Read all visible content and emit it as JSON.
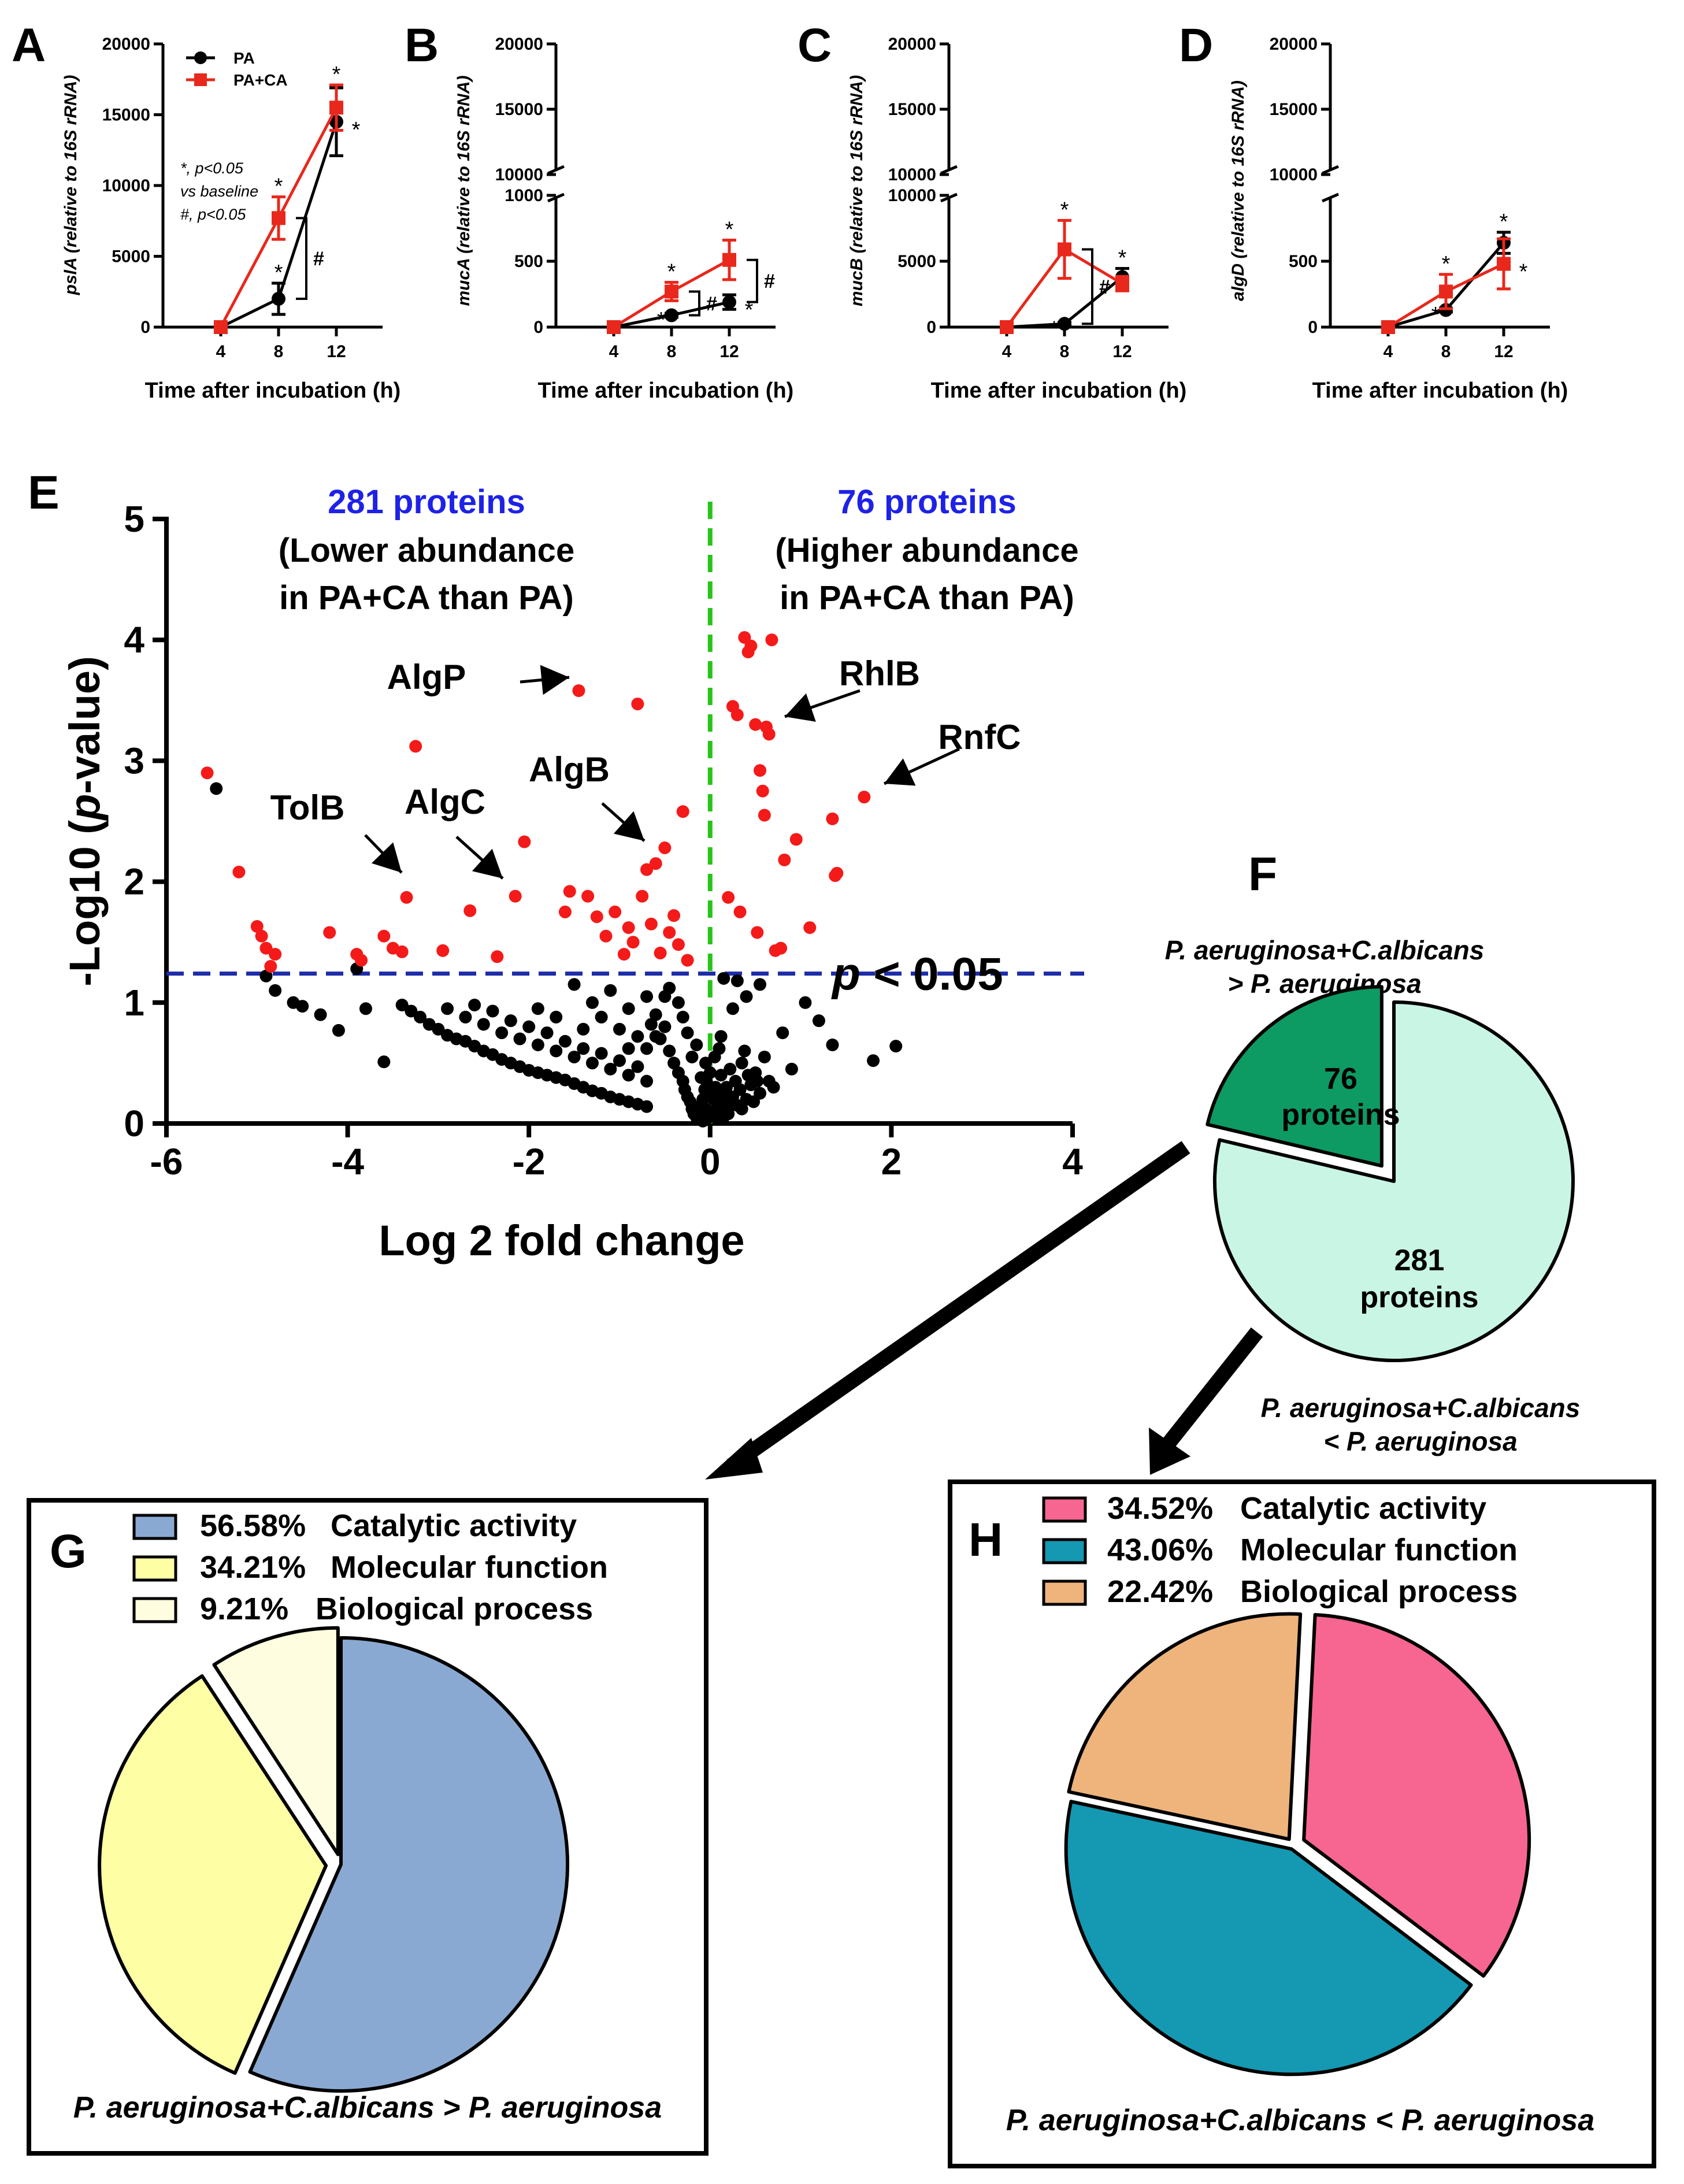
{
  "panel_letters": [
    "A",
    "B",
    "C",
    "D",
    "E",
    "F",
    "G",
    "H"
  ],
  "line_panels": [
    {
      "letter": "A",
      "gene": "pslA",
      "ylabel_suffix": " (relative to 16S rRNA)",
      "xlabel": "Time after incubation (h)",
      "x": [
        4,
        8,
        12
      ],
      "upper_ticks": [
        "10000",
        "15000",
        "20000"
      ],
      "lower_ticks": [
        "0",
        "5000",
        "10000",
        "15000"
      ],
      "series": [
        {
          "name": "PA",
          "color": "#000000",
          "values": [
            0,
            2000,
            14500
          ],
          "errors": [
            0,
            1100,
            2400
          ]
        },
        {
          "name": "PA+CA",
          "color": "#e8281c",
          "values": [
            0,
            7700,
            15500
          ],
          "errors": [
            0,
            1500,
            1600
          ]
        }
      ],
      "annotations": [
        "*",
        "*",
        "*",
        "*",
        "#"
      ],
      "stats_note": [
        "*, p<0.05",
        "vs baseline",
        "#, p<0.05"
      ]
    },
    {
      "letter": "B",
      "gene": "mucA",
      "ylabel_suffix": " (relative to 16S rRNA)",
      "xlabel": "Time after incubation (h)",
      "x": [
        4,
        8,
        12
      ],
      "upper_ticks": [
        "10000",
        "15000",
        "20000"
      ],
      "lower_ticks": [
        "0",
        "500",
        "1000"
      ],
      "series": [
        {
          "name": "PA",
          "color": "#000000",
          "values": [
            0,
            90,
            190
          ],
          "errors": [
            0,
            15,
            55
          ]
        },
        {
          "name": "PA+CA",
          "color": "#e8281c",
          "values": [
            0,
            270,
            510
          ],
          "errors": [
            0,
            70,
            150
          ]
        }
      ],
      "annotations": [
        "*",
        "*",
        "*",
        "*",
        "#",
        "#"
      ]
    },
    {
      "letter": "C",
      "gene": "mucB",
      "ylabel_suffix": " (relative to 16S rRNA)",
      "xlabel": "Time after incubation (h)",
      "x": [
        4,
        8,
        12
      ],
      "upper_ticks": [
        "10000",
        "15000",
        "20000"
      ],
      "lower_ticks": [
        "0",
        "5000",
        "10000"
      ],
      "series": [
        {
          "name": "PA",
          "color": "#000000",
          "values": [
            0,
            250,
            3800
          ],
          "errors": [
            0,
            120,
            650
          ]
        },
        {
          "name": "PA+CA",
          "color": "#e8281c",
          "values": [
            0,
            5900,
            3300
          ],
          "errors": [
            0,
            2200,
            550
          ]
        }
      ],
      "annotations": [
        "*",
        "*",
        "*",
        "#"
      ]
    },
    {
      "letter": "D",
      "gene": "algD",
      "ylabel_suffix": " (relative to 16S rRNA)",
      "xlabel": "Time after incubation (h)",
      "x": [
        4,
        8,
        12
      ],
      "upper_ticks": [
        "10000",
        "15000",
        "20000"
      ],
      "lower_ticks": [
        "0",
        "500"
      ],
      "series": [
        {
          "name": "PA",
          "color": "#000000",
          "values": [
            0,
            130,
            640
          ],
          "errors": [
            0,
            15,
            80
          ]
        },
        {
          "name": "PA+CA",
          "color": "#e8281c",
          "values": [
            0,
            270,
            480
          ],
          "errors": [
            0,
            130,
            190
          ]
        }
      ],
      "annotations": [
        "*",
        "*",
        "*",
        "*"
      ]
    }
  ],
  "volcano": {
    "letter": "E",
    "xlabel": "Log 2 fold change",
    "ylabel_pre": "-Log10 (",
    "ylabel_italic": "p",
    "ylabel_post": "-value)",
    "xticks": [
      "-6",
      "-4",
      "-2",
      "0",
      "2",
      "4"
    ],
    "yticks": [
      "0",
      "1",
      "2",
      "3",
      "4",
      "5"
    ],
    "xlim": [
      -6,
      4
    ],
    "ylim": [
      0,
      5
    ],
    "threshold": 1.24,
    "threshold_label_italic": "p",
    "threshold_label_rest": " < 0.05",
    "left_count": "281 proteins",
    "left_desc": [
      "(Lower abundance",
      "in PA+CA than PA)"
    ],
    "right_count": "76 proteins",
    "right_desc": [
      "(Higher abundance",
      "in PA+CA than PA)"
    ],
    "labeled_proteins": [
      "AlgP",
      "RhlB",
      "RnfC",
      "TolB",
      "AlgC",
      "AlgB"
    ],
    "sig_points": [
      [
        -5.55,
        2.9
      ],
      [
        -5.2,
        2.08
      ],
      [
        -5.0,
        1.63
      ],
      [
        -4.95,
        1.55
      ],
      [
        -4.9,
        1.45
      ],
      [
        -4.85,
        1.3
      ],
      [
        -4.8,
        1.4
      ],
      [
        -4.2,
        1.58
      ],
      [
        -3.9,
        1.4
      ],
      [
        -3.85,
        1.35
      ],
      [
        -3.6,
        1.55
      ],
      [
        -3.5,
        1.45
      ],
      [
        -3.4,
        1.42
      ],
      [
        -3.35,
        1.87
      ],
      [
        -3.25,
        3.12
      ],
      [
        -2.95,
        1.43
      ],
      [
        -2.65,
        1.76
      ],
      [
        -2.35,
        1.38
      ],
      [
        -2.05,
        2.33
      ],
      [
        -2.15,
        1.88
      ],
      [
        -1.55,
        1.92
      ],
      [
        -1.6,
        1.75
      ],
      [
        -1.45,
        3.58
      ],
      [
        -1.35,
        1.88
      ],
      [
        -1.25,
        1.71
      ],
      [
        -1.15,
        1.55
      ],
      [
        -1.05,
        1.75
      ],
      [
        -0.95,
        1.4
      ],
      [
        -0.9,
        1.62
      ],
      [
        -0.85,
        1.5
      ],
      [
        -0.8,
        3.47
      ],
      [
        -0.75,
        1.88
      ],
      [
        -0.7,
        2.1
      ],
      [
        -0.65,
        1.65
      ],
      [
        -0.6,
        2.15
      ],
      [
        -0.55,
        1.41
      ],
      [
        -0.5,
        2.28
      ],
      [
        -0.45,
        1.58
      ],
      [
        -0.4,
        1.72
      ],
      [
        -0.35,
        1.48
      ],
      [
        -0.3,
        2.58
      ],
      [
        -0.25,
        1.35
      ],
      [
        0.2,
        1.87
      ],
      [
        0.25,
        3.45
      ],
      [
        0.3,
        3.38
      ],
      [
        0.33,
        1.75
      ],
      [
        0.38,
        4.02
      ],
      [
        0.42,
        3.9
      ],
      [
        0.45,
        3.95
      ],
      [
        0.5,
        3.3
      ],
      [
        0.52,
        1.58
      ],
      [
        0.55,
        2.92
      ],
      [
        0.58,
        2.75
      ],
      [
        0.6,
        2.55
      ],
      [
        0.62,
        3.28
      ],
      [
        0.65,
        3.22
      ],
      [
        0.68,
        4.0
      ],
      [
        0.72,
        1.43
      ],
      [
        0.78,
        1.45
      ],
      [
        0.82,
        2.18
      ],
      [
        0.95,
        2.35
      ],
      [
        1.1,
        1.62
      ],
      [
        1.35,
        2.52
      ],
      [
        1.38,
        2.05
      ],
      [
        1.4,
        2.07
      ],
      [
        1.7,
        2.7
      ]
    ],
    "ns_points": [
      [
        -5.45,
        2.77
      ],
      [
        -4.9,
        1.22
      ],
      [
        -4.8,
        1.1
      ],
      [
        -4.6,
        1.0
      ],
      [
        -4.5,
        0.97
      ],
      [
        -4.3,
        0.9
      ],
      [
        -4.1,
        0.77
      ],
      [
        -3.9,
        1.28
      ],
      [
        -3.8,
        0.95
      ],
      [
        -3.6,
        0.51
      ],
      [
        -3.4,
        0.98
      ],
      [
        -3.3,
        0.93
      ],
      [
        -3.2,
        0.88
      ],
      [
        -3.1,
        0.82
      ],
      [
        -3.0,
        0.78
      ],
      [
        -2.9,
        0.73
      ],
      [
        -2.8,
        0.7
      ],
      [
        -2.7,
        0.68
      ],
      [
        -2.6,
        0.64
      ],
      [
        -2.5,
        0.6
      ],
      [
        -2.4,
        0.57
      ],
      [
        -2.3,
        0.53
      ],
      [
        -2.2,
        0.5
      ],
      [
        -2.1,
        0.47
      ],
      [
        -2.0,
        0.44
      ],
      [
        -1.9,
        0.42
      ],
      [
        -1.8,
        0.4
      ],
      [
        -1.7,
        0.38
      ],
      [
        -1.6,
        0.36
      ],
      [
        -1.5,
        0.33
      ],
      [
        -1.4,
        0.3
      ],
      [
        -1.3,
        0.27
      ],
      [
        -1.2,
        0.25
      ],
      [
        -1.1,
        0.22
      ],
      [
        -1.0,
        0.2
      ],
      [
        -0.9,
        0.18
      ],
      [
        -0.8,
        0.16
      ],
      [
        -0.7,
        0.14
      ],
      [
        -2.9,
        0.95
      ],
      [
        -2.7,
        0.88
      ],
      [
        -2.5,
        0.82
      ],
      [
        -2.3,
        0.75
      ],
      [
        -2.1,
        0.7
      ],
      [
        -1.9,
        0.65
      ],
      [
        -1.7,
        0.6
      ],
      [
        -1.5,
        0.55
      ],
      [
        -1.3,
        0.5
      ],
      [
        -1.1,
        0.45
      ],
      [
        -0.9,
        0.4
      ],
      [
        -0.7,
        0.35
      ],
      [
        -2.6,
        0.98
      ],
      [
        -2.4,
        0.93
      ],
      [
        -2.2,
        0.85
      ],
      [
        -2.0,
        0.8
      ],
      [
        -1.8,
        0.75
      ],
      [
        -1.6,
        0.68
      ],
      [
        -1.4,
        0.62
      ],
      [
        -1.2,
        0.58
      ],
      [
        -1.0,
        0.52
      ],
      [
        -0.8,
        0.47
      ],
      [
        -1.5,
        1.15
      ],
      [
        -1.3,
        1.0
      ],
      [
        -1.1,
        1.1
      ],
      [
        -0.9,
        0.95
      ],
      [
        -0.7,
        1.05
      ],
      [
        -0.6,
        0.9
      ],
      [
        -0.5,
        0.8
      ],
      [
        -0.55,
        0.7
      ],
      [
        -0.45,
        0.6
      ],
      [
        -0.4,
        0.5
      ],
      [
        -0.35,
        0.42
      ],
      [
        -0.3,
        0.35
      ],
      [
        -0.28,
        0.28
      ],
      [
        -0.25,
        0.22
      ],
      [
        -0.22,
        0.18
      ],
      [
        -0.2,
        0.12
      ],
      [
        -0.18,
        0.08
      ],
      [
        -0.15,
        0.05
      ],
      [
        -0.12,
        0.1
      ],
      [
        -0.1,
        0.15
      ],
      [
        -0.08,
        0.2
      ],
      [
        -0.06,
        0.28
      ],
      [
        -0.04,
        0.35
      ],
      [
        -0.02,
        0.05
      ],
      [
        0.02,
        0.1
      ],
      [
        0.04,
        0.2
      ],
      [
        0.06,
        0.3
      ],
      [
        0.08,
        0.12
      ],
      [
        0.1,
        0.25
      ],
      [
        0.12,
        0.4
      ],
      [
        0.15,
        0.18
      ],
      [
        0.18,
        0.3
      ],
      [
        0.2,
        0.08
      ],
      [
        0.22,
        0.45
      ],
      [
        0.25,
        0.22
      ],
      [
        0.28,
        0.35
      ],
      [
        0.3,
        0.15
      ],
      [
        0.33,
        0.28
      ],
      [
        0.35,
        0.5
      ],
      [
        0.38,
        0.6
      ],
      [
        0.4,
        0.2
      ],
      [
        0.45,
        0.32
      ],
      [
        0.5,
        0.42
      ],
      [
        0.55,
        0.25
      ],
      [
        0.6,
        0.55
      ],
      [
        0.65,
        0.35
      ],
      [
        0.7,
        0.3
      ],
      [
        0.8,
        0.75
      ],
      [
        0.9,
        0.45
      ],
      [
        1.05,
        1.0
      ],
      [
        1.2,
        0.85
      ],
      [
        1.35,
        0.65
      ],
      [
        1.8,
        0.52
      ],
      [
        2.05,
        0.64
      ],
      [
        0.15,
        1.2
      ],
      [
        0.3,
        1.18
      ],
      [
        0.4,
        1.05
      ],
      [
        0.55,
        1.15
      ],
      [
        0.25,
        0.95
      ],
      [
        -0.15,
        0.65
      ],
      [
        -0.2,
        0.55
      ],
      [
        -0.25,
        0.75
      ],
      [
        -0.3,
        0.88
      ],
      [
        -0.35,
        1.0
      ],
      [
        -0.45,
        1.12
      ],
      [
        -0.5,
        1.05
      ],
      [
        -0.6,
        0.72
      ],
      [
        -0.65,
        0.82
      ],
      [
        -0.7,
        0.62
      ],
      [
        -0.8,
        0.72
      ],
      [
        -0.9,
        0.62
      ],
      [
        -1.0,
        0.78
      ],
      [
        -1.2,
        0.88
      ],
      [
        -1.4,
        0.78
      ],
      [
        -1.7,
        0.88
      ],
      [
        -1.9,
        0.95
      ],
      [
        -0.05,
        0.5
      ],
      [
        0.0,
        0.42
      ],
      [
        0.05,
        0.55
      ],
      [
        0.1,
        0.62
      ],
      [
        0.12,
        0.72
      ],
      [
        -0.1,
        0.38
      ],
      [
        -0.02,
        0.25
      ],
      [
        0.07,
        0.05
      ],
      [
        0.14,
        0.04
      ],
      [
        0.17,
        0.13
      ],
      [
        0.2,
        0.2
      ],
      [
        -0.05,
        0.12
      ],
      [
        -0.08,
        0.02
      ],
      [
        0.35,
        0.12
      ],
      [
        0.42,
        0.4
      ],
      [
        0.48,
        0.18
      ],
      [
        0.52,
        0.35
      ]
    ]
  },
  "pie_f": {
    "letter": "F",
    "top_label": [
      "P. aeruginosa+C.albicans",
      "> P. aeruginosa"
    ],
    "bottom_label": [
      "P. aeruginosa+C.albicans",
      "< P. aeruginosa"
    ],
    "slices": [
      {
        "label": "76",
        "sub": "proteins",
        "value": 76,
        "color": "#0e9a63"
      },
      {
        "label": "281",
        "sub": "proteins",
        "value": 281,
        "color": "#c9f5e4"
      }
    ]
  },
  "pie_g": {
    "letter": "G",
    "legend": [
      {
        "pct": "56.58%",
        "name": "Catalytic activity",
        "value": 56.58,
        "color": "#8aa9d2"
      },
      {
        "pct": "34.21%",
        "name": "Molecular function",
        "value": 34.21,
        "color": "#feffa4"
      },
      {
        "pct": "9.21%",
        "name": "Biological process",
        "value": 9.21,
        "color": "#fffde0"
      }
    ],
    "caption": "P. aeruginosa+C.albicans > P. aeruginosa"
  },
  "pie_h": {
    "letter": "H",
    "legend": [
      {
        "pct": "34.52%",
        "name": "Catalytic activity",
        "value": 34.52,
        "color": "#f76591"
      },
      {
        "pct": "43.06%",
        "name": "Molecular function",
        "value": 43.06,
        "color": "#1598b2"
      },
      {
        "pct": "22.42%",
        "name": "Biological process",
        "value": 22.42,
        "color": "#eeb47c"
      }
    ],
    "caption": "P. aeruginosa+C.albicans < P. aeruginosa"
  }
}
